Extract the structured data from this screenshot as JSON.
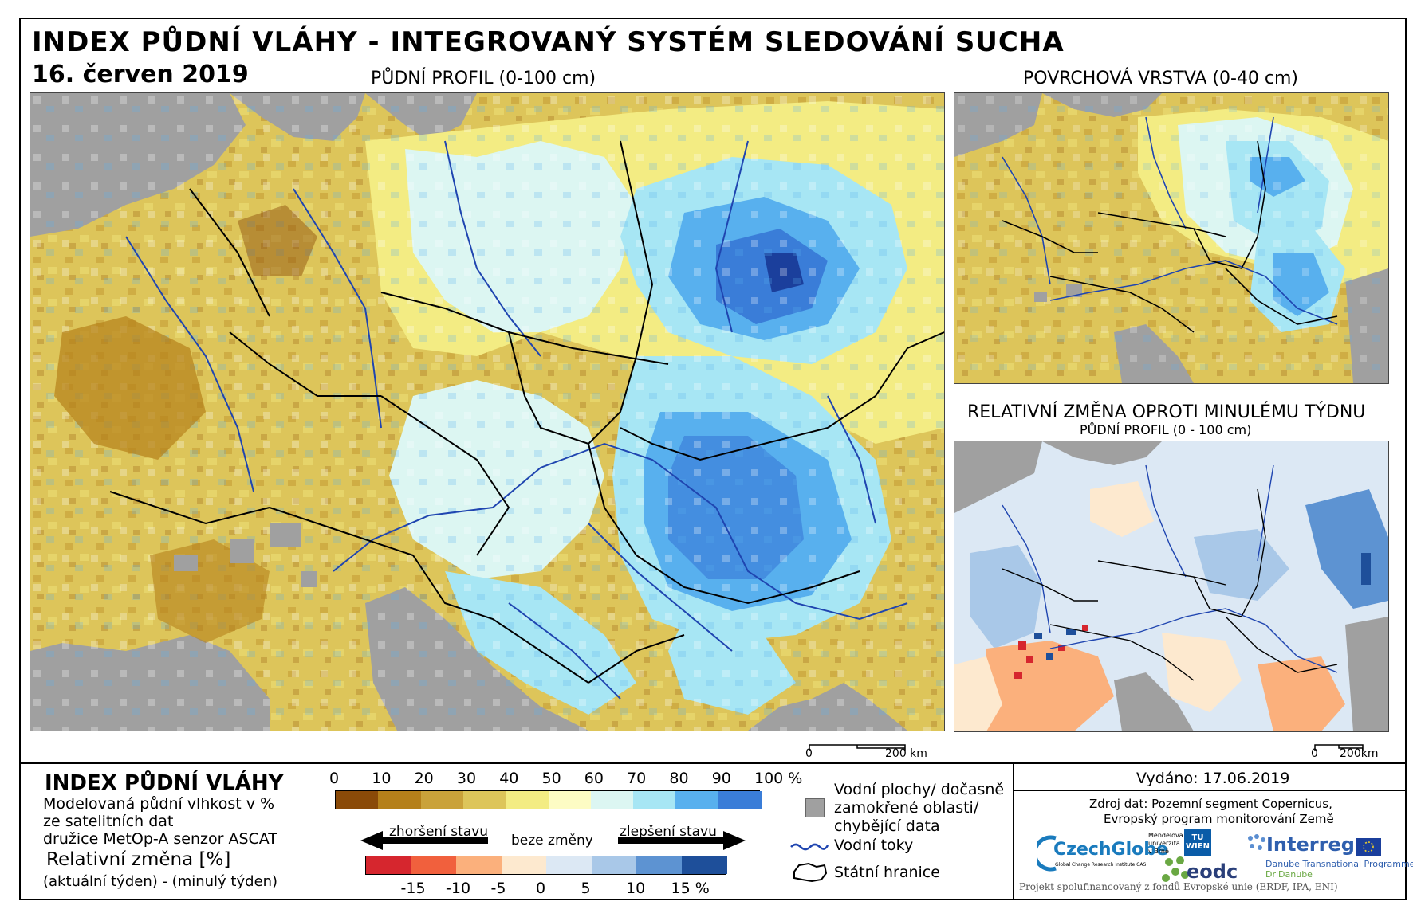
{
  "header": {
    "title": "INDEX PŮDNÍ VLÁHY - INTEGROVANÝ SYSTÉM SLEDOVÁNÍ SUCHA",
    "date": "16. červen 2019"
  },
  "maps": {
    "main": {
      "label": "PŮDNÍ PROFIL (0-100 cm)"
    },
    "surface": {
      "label": "POVRCHOVÁ VRSTVA (0-40 cm)"
    },
    "change": {
      "label": "RELATIVNÍ ZMĚNA OPROTI MINULÉMU TÝDNU",
      "sublabel": "PŮDNÍ PROFIL (0 - 100 cm)"
    }
  },
  "scalebars": {
    "main": {
      "zero": "0",
      "end": "200 km"
    },
    "small": {
      "zero": "0",
      "end": "200km"
    }
  },
  "legend": {
    "title": "INDEX PŮDNÍ VLÁHY",
    "desc_line1": "Modelovaná půdní vlhkost v %",
    "desc_line2": "ze satelitních dat",
    "desc_line3": "družice MetOp-A senzor ASCAT",
    "rel_title": "Relativní změna [%]",
    "rel_desc": "(aktuální týden) - (minulý týden)",
    "moisture_ticks": [
      "0",
      "10",
      "20",
      "30",
      "40",
      "50",
      "60",
      "70",
      "80",
      "90",
      "100 %"
    ],
    "moisture_colors": [
      "#8a4a08",
      "#b5801a",
      "#caa23a",
      "#ddc55a",
      "#f3ec83",
      "#fdfcc4",
      "#dcf6f2",
      "#a7e6f4",
      "#58b0ee",
      "#3a7dd8",
      "#1b3f9c"
    ],
    "worse_label": "zhoršení stavu",
    "none_label": "beze změny",
    "better_label": "zlepšení stavu",
    "change_ticks": [
      "-15",
      "-10",
      "-5",
      "0",
      "5",
      "10",
      "15 %"
    ],
    "change_colors": [
      "#d6262e",
      "#f1603d",
      "#fbb07c",
      "#fde9cf",
      "#dce8f4",
      "#a9c8e8",
      "#5d93d2",
      "#1e4f9a"
    ],
    "water_label_1": "Vodní plochy/ dočasně",
    "water_label_2": "zamokřené oblasti/",
    "water_label_3": "chybějící data",
    "rivers_label": "Vodní toky",
    "borders_label": "Státní hranice",
    "issued": "Vydáno: 17.06.2019",
    "source_1": "Zdroj dat: Pozemní segment Copernicus,",
    "source_2": "Evropský program monitorování Země",
    "project": "Projekt spolufinancovaný z fondů Evropské unie (ERDF, IPA, ENI)",
    "logos": {
      "czechglobe": "CzechGlobe",
      "czechglobe_sub": "Global Change Research Institute CAS",
      "mendel": "Mendelova univerzita v Brně",
      "tu": "TU WIEN",
      "eodc": "eodc",
      "interreg": "Interreg",
      "interreg_sub1": "Danube Transnational Programme",
      "interreg_sub2": "DriDanube"
    }
  },
  "colors": {
    "sea": "#a0a0a0",
    "river": "#1f45b0",
    "border": "#000000"
  }
}
